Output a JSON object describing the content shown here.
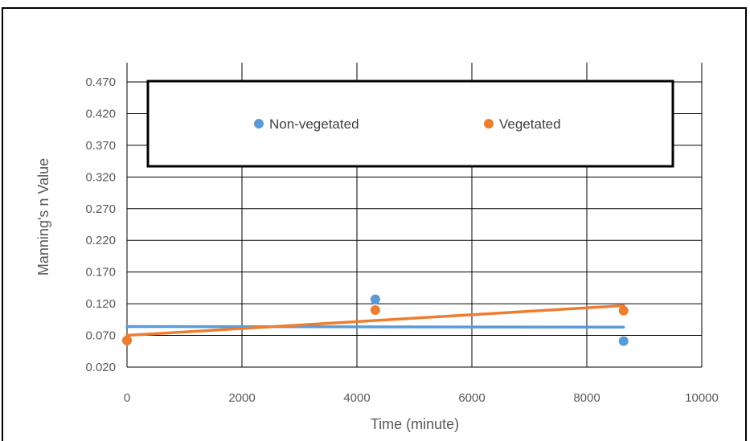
{
  "chart_data": {
    "type": "scatter",
    "title": "",
    "xlabel": "Time (minute)",
    "ylabel": "Manning's n Value",
    "xlim": [
      0,
      10000
    ],
    "ylim": [
      0.02,
      0.47
    ],
    "x_ticks": [
      "0",
      "2000",
      "4000",
      "6000",
      "8000",
      "10000"
    ],
    "y_ticks": [
      "0.020",
      "0.070",
      "0.120",
      "0.170",
      "0.220",
      "0.270",
      "0.320",
      "0.370",
      "0.420",
      "0.470"
    ],
    "grid": true,
    "legend_position": "top",
    "series": [
      {
        "name": "Non-vegetated",
        "color": "#5B9BD5",
        "x": [
          0,
          4320,
          8640
        ],
        "y": [
          0.062,
          0.127,
          0.061
        ],
        "trendline": {
          "x": [
            0,
            8640
          ],
          "y": [
            0.084,
            0.083
          ]
        }
      },
      {
        "name": "Vegetated",
        "color": "#ED7D31",
        "x": [
          0,
          4320,
          8640
        ],
        "y": [
          0.062,
          0.11,
          0.109
        ],
        "trendline": {
          "x": [
            0,
            8640
          ],
          "y": [
            0.07,
            0.117
          ]
        }
      }
    ]
  }
}
